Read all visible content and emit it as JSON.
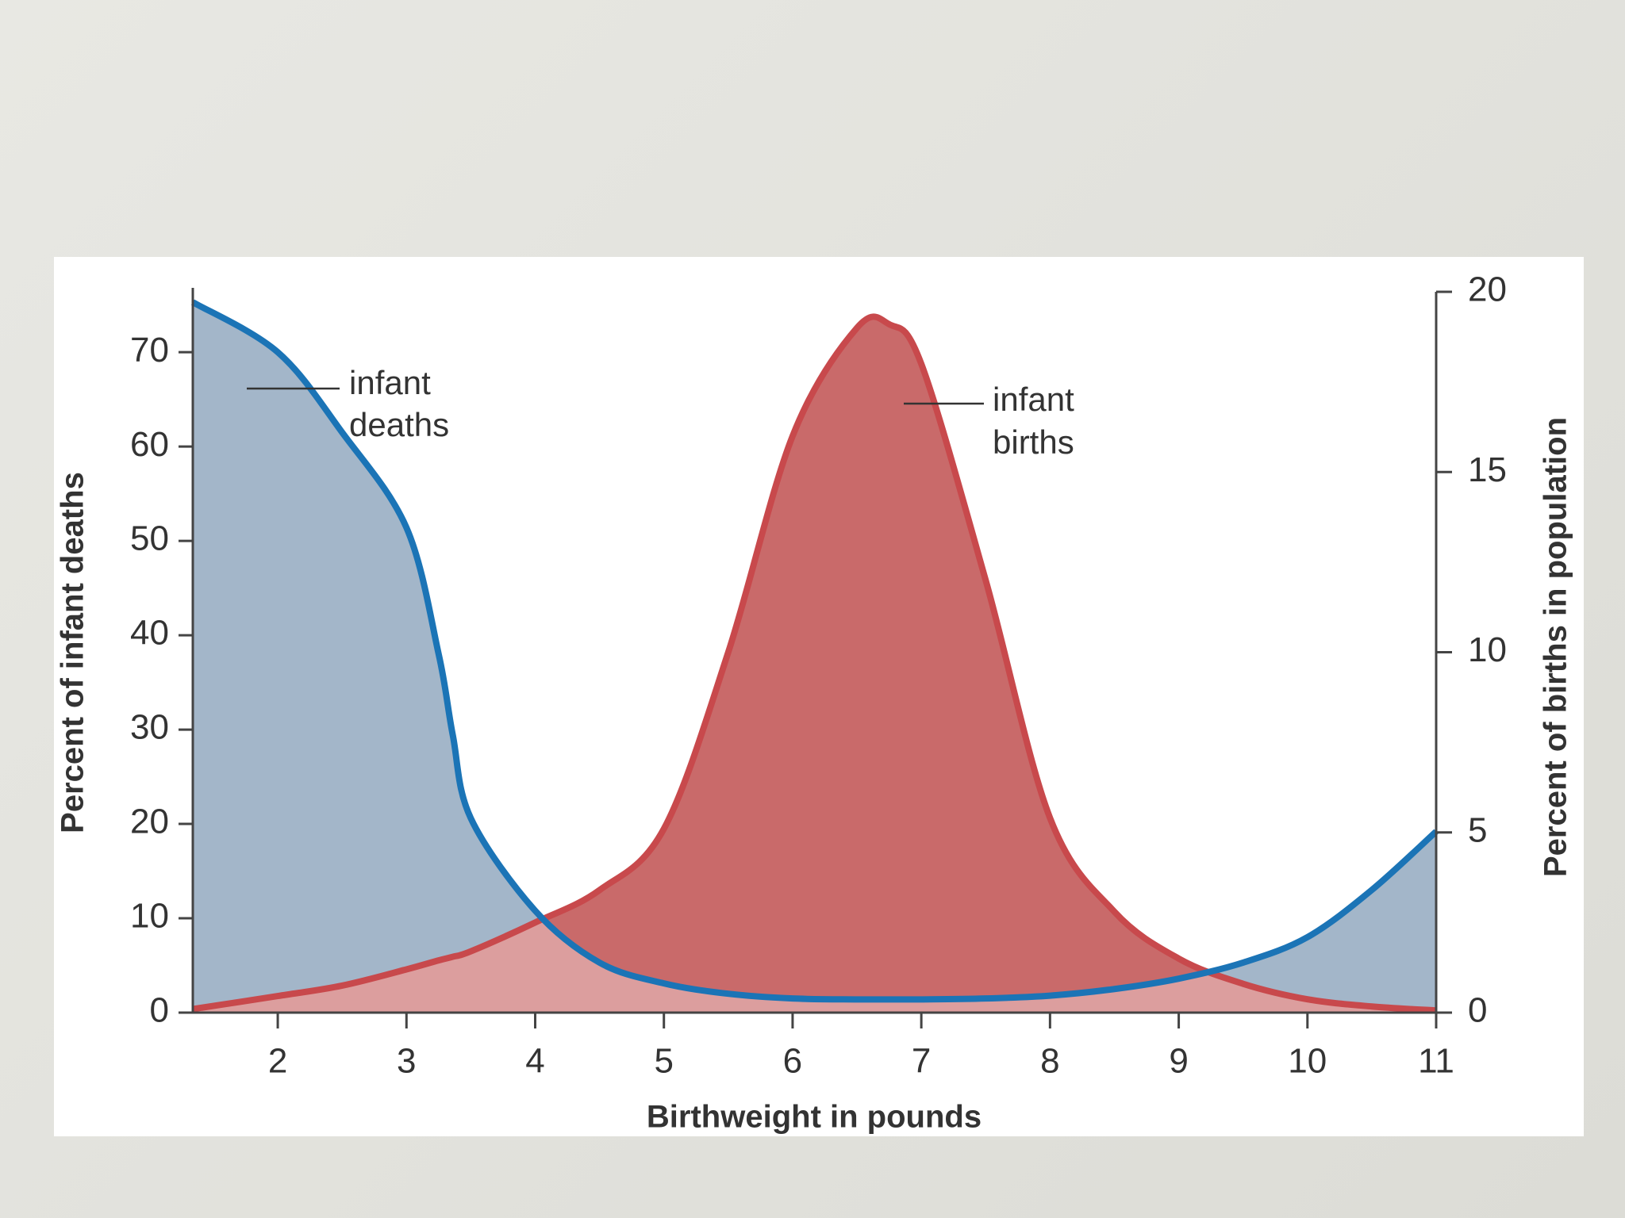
{
  "chart_data": {
    "type": "area",
    "x_label": "Birthweight in pounds",
    "y_label": "Percent of infant deaths",
    "y2_label": "Percent of births in population",
    "x": [
      1.34,
      2,
      2.5,
      3,
      3.25,
      3.36,
      3.5,
      4,
      4.5,
      5,
      5.5,
      6,
      6.5,
      6.75,
      7,
      7.5,
      8,
      8.5,
      9,
      9.5,
      10,
      10.5,
      11
    ],
    "series": [
      {
        "label_lines": [
          "infant",
          "deaths"
        ],
        "color": "#1b74b6",
        "fill": "#a3b6c9",
        "axis": "y",
        "values": [
          75.3,
          70,
          61.5,
          51.4,
          38,
          29.4,
          20.6,
          10.8,
          5.3,
          3.1,
          2,
          1.5,
          1.4,
          1.4,
          1.4,
          1.5,
          1.8,
          2.5,
          3.6,
          5.3,
          8,
          13,
          19.2
        ]
      },
      {
        "label_lines": [
          "infant",
          "births"
        ],
        "color": "#c8494c",
        "fill": "#c96a6a",
        "axis": "y2",
        "values": [
          0.1,
          0.46,
          0.75,
          1.2,
          1.45,
          1.55,
          1.7,
          2.5,
          3.4,
          5.1,
          10,
          16,
          19,
          19.1,
          18,
          12,
          5.4,
          2.8,
          1.5,
          0.8,
          0.37,
          0.17,
          0.06
        ]
      }
    ],
    "xlim": [
      1.34,
      11
    ],
    "xticks": [
      2,
      3,
      4,
      5,
      6,
      7,
      8,
      9,
      10,
      11
    ],
    "ylim": [
      0,
      76.4
    ],
    "yticks": [
      0,
      10,
      20,
      30,
      40,
      50,
      60,
      70
    ],
    "y2lim": [
      0,
      20
    ],
    "y2ticks": [
      0,
      5,
      10,
      15,
      20
    ]
  }
}
